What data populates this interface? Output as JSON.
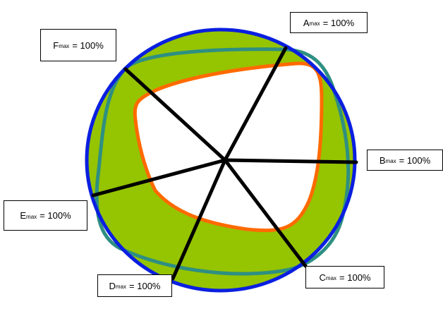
{
  "colors": {
    "outer_boundary": "#0a1fe0",
    "band_fill": "#95c400",
    "middle_contour": "#2e8f82",
    "inner_contour": "#ff6a00",
    "spokes": "#000000",
    "background": "#ffffff"
  },
  "labels": {
    "a": {
      "letter": "A",
      "sub": "max",
      "value": "= 100%"
    },
    "b": {
      "letter": "B",
      "sub": "max",
      "value": "= 100%"
    },
    "c": {
      "letter": "C",
      "sub": "max",
      "value": "= 100%"
    },
    "d": {
      "letter": "D",
      "sub": "max",
      "value": "= 100%"
    },
    "e": {
      "letter": "E",
      "sub": "max",
      "value": "= 100%"
    },
    "f": {
      "letter": "F",
      "sub": "max",
      "value": "= 100%"
    }
  }
}
